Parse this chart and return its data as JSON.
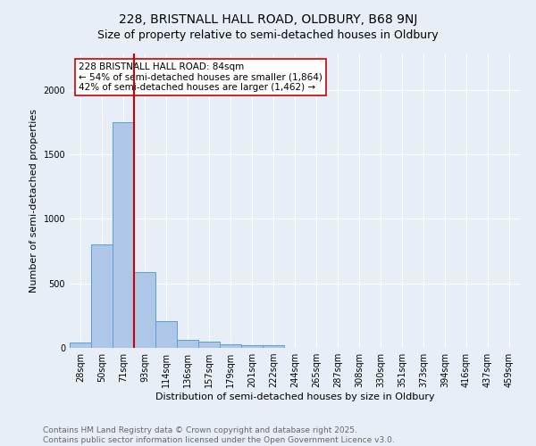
{
  "title": "228, BRISTNALL HALL ROAD, OLDBURY, B68 9NJ",
  "subtitle": "Size of property relative to semi-detached houses in Oldbury",
  "xlabel": "Distribution of semi-detached houses by size in Oldbury",
  "ylabel": "Number of semi-detached properties",
  "categories": [
    "28sqm",
    "50sqm",
    "71sqm",
    "93sqm",
    "114sqm",
    "136sqm",
    "157sqm",
    "179sqm",
    "201sqm",
    "222sqm",
    "244sqm",
    "265sqm",
    "287sqm",
    "308sqm",
    "330sqm",
    "351sqm",
    "373sqm",
    "394sqm",
    "416sqm",
    "437sqm",
    "459sqm"
  ],
  "values": [
    40,
    800,
    1750,
    590,
    205,
    60,
    45,
    30,
    20,
    20,
    0,
    0,
    0,
    0,
    0,
    0,
    0,
    0,
    0,
    0,
    0
  ],
  "bar_color": "#aec6e8",
  "bar_edge_color": "#5a9fd4",
  "vline_color": "#cc0000",
  "annotation_line1": "228 BRISTNALL HALL ROAD: 84sqm",
  "annotation_line2": "← 54% of semi-detached houses are smaller (1,864)",
  "annotation_line3": "42% of semi-detached houses are larger (1,462) →",
  "annotation_box_color": "#ffffff",
  "annotation_box_edge_color": "#cc0000",
  "ylim": [
    0,
    2280
  ],
  "background_color": "#e8eef8",
  "plot_background_color": "#e8eef8",
  "footer_text": "Contains HM Land Registry data © Crown copyright and database right 2025.\nContains public sector information licensed under the Open Government Licence v3.0.",
  "title_fontsize": 10,
  "subtitle_fontsize": 9,
  "axis_label_fontsize": 8,
  "tick_fontsize": 7,
  "annotation_fontsize": 7.5,
  "footer_fontsize": 6.5
}
